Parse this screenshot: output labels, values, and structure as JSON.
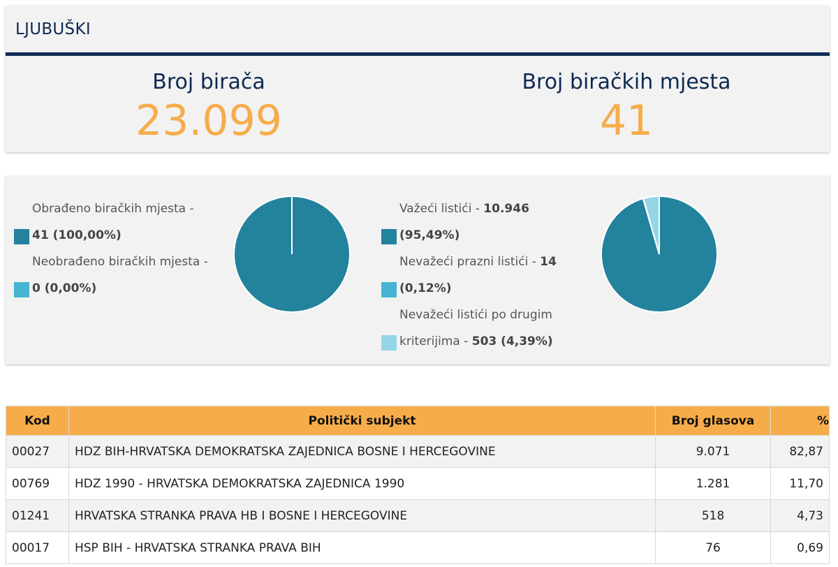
{
  "header": {
    "title": "LJUBUŠKI"
  },
  "stats": {
    "voters_label": "Broj birača",
    "voters_value": "23.099",
    "stations_label": "Broj biračkih mjesta",
    "stations_value": "41"
  },
  "colors": {
    "primary": "#23829c",
    "secondary": "#46b4d2",
    "tertiary": "#94d5e6",
    "accent": "#f7ac4a",
    "navy": "#0e2a52"
  },
  "processing": {
    "items": [
      {
        "text": "Obrađeno biračkih mjesta - ",
        "value": "41 (100,00%)",
        "fraction": 1.0,
        "color": "#23829c"
      },
      {
        "text": "Neobrađeno biračkih mjesta - ",
        "value": "0 (0,00%)",
        "fraction": 0.0,
        "color": "#46b4d2"
      }
    ]
  },
  "ballots": {
    "items": [
      {
        "text": "Važeći listići - ",
        "value": "10.946",
        "value2": "(95,49%)",
        "fraction": 0.9549,
        "color": "#23829c"
      },
      {
        "text": "Nevažeći prazni listići - ",
        "value": "14",
        "value2": "(0,12%)",
        "fraction": 0.0012,
        "color": "#46b4d2"
      },
      {
        "text": "Nevažeći listići po drugim",
        "text2": "kriterijima - ",
        "value": "503 (4,39%)",
        "fraction": 0.0439,
        "color": "#94d5e6"
      }
    ]
  },
  "table": {
    "headers": {
      "kod": "Kod",
      "subject": "Politički subjekt",
      "votes": "Broj glasova",
      "pct": "%"
    },
    "rows": [
      {
        "kod": "00027",
        "subject": "HDZ BIH-HRVATSKA DEMOKRATSKA ZAJEDNICA BOSNE I HERCEGOVINE",
        "votes": "9.071",
        "pct": "82,87"
      },
      {
        "kod": "00769",
        "subject": "HDZ 1990 - HRVATSKA DEMOKRATSKA ZAJEDNICA 1990",
        "votes": "1.281",
        "pct": "11,70"
      },
      {
        "kod": "01241",
        "subject": "HRVATSKA STRANKA PRAVA HB I BOSNE I HERCEGOVINE",
        "votes": "518",
        "pct": "4,73"
      },
      {
        "kod": "00017",
        "subject": "HSP BIH - HRVATSKA STRANKA PRAVA BIH",
        "votes": "76",
        "pct": "0,69"
      }
    ]
  }
}
